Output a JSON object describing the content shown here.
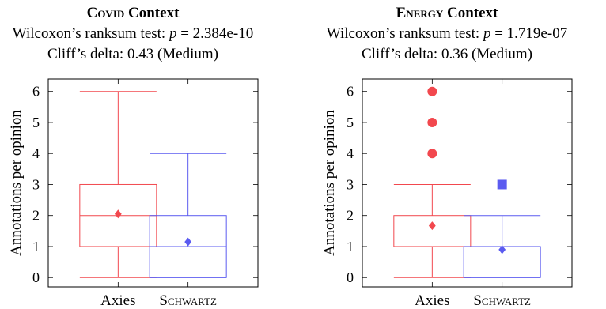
{
  "chart_data": [
    {
      "type": "boxplot",
      "title_main": "Covid",
      "title_suffix": " Context",
      "stat_prefix": "Wilcoxon’s ranksum test: ",
      "stat_symbol": "p",
      "stat_value": " = 2.384e-10",
      "effect_line": "Cliff’s delta: 0.43 (Medium)",
      "ylabel": "Annotations per opinion",
      "ylim": [
        -0.3,
        6.4
      ],
      "yticks": [
        0,
        1,
        2,
        3,
        4,
        5,
        6
      ],
      "categories": [
        "Axies",
        "Schwartz"
      ],
      "category_smallcaps": [
        false,
        true
      ],
      "series": [
        {
          "color": "#f2484e",
          "whisker_low": 0,
          "q1": 1,
          "median": 2,
          "q3": 3,
          "whisker_high": 6,
          "mean": 2.05,
          "outliers": [],
          "outlier_shape": "circle"
        },
        {
          "color": "#5b5bf0",
          "whisker_low": 0,
          "q1": 0,
          "median": 1,
          "q3": 2,
          "whisker_high": 4,
          "mean": 1.15,
          "outliers": [],
          "outlier_shape": "square"
        }
      ]
    },
    {
      "type": "boxplot",
      "title_main": "Energy",
      "title_suffix": " Context",
      "stat_prefix": "Wilcoxon’s ranksum test: ",
      "stat_symbol": "p",
      "stat_value": " = 1.719e-07",
      "effect_line": "Cliff’s delta: 0.36 (Medium)",
      "ylabel": "Annotations per opinion",
      "ylim": [
        -0.3,
        6.4
      ],
      "yticks": [
        0,
        1,
        2,
        3,
        4,
        5,
        6
      ],
      "categories": [
        "Axies",
        "Schwartz"
      ],
      "category_smallcaps": [
        false,
        true
      ],
      "series": [
        {
          "color": "#f2484e",
          "whisker_low": 0,
          "q1": 1,
          "median": 1,
          "q3": 2,
          "whisker_high": 3,
          "mean": 1.67,
          "outliers": [
            4,
            5,
            6
          ],
          "outlier_shape": "circle"
        },
        {
          "color": "#5b5bf0",
          "whisker_low": 0,
          "q1": 0,
          "median": 1,
          "q3": 1,
          "whisker_high": 2,
          "mean": 0.9,
          "outliers": [
            3
          ],
          "outlier_shape": "square"
        }
      ]
    }
  ]
}
